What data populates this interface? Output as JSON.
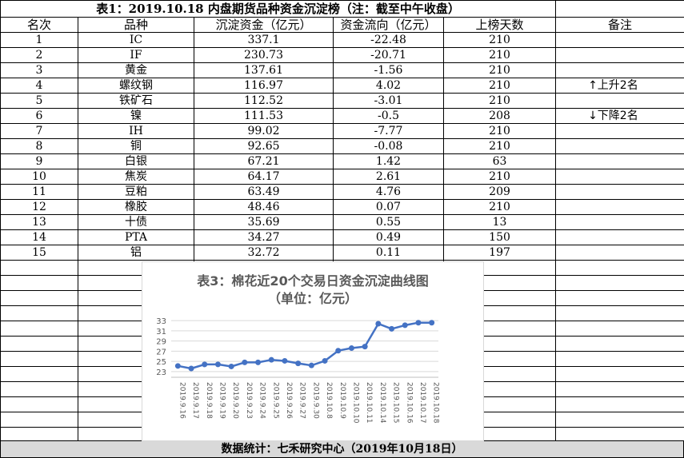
{
  "table": {
    "title": "表1：2019.10.18 内盘期货品种资金沉淀榜（注：截至中午收盘）",
    "headers": [
      "名次",
      "品种",
      "沉淀资金（亿元）",
      "资金流向（亿元）",
      "上榜天数",
      "备注"
    ],
    "rows": [
      [
        "1",
        "IC",
        "337.1",
        "-22.48",
        "210",
        ""
      ],
      [
        "2",
        "IF",
        "230.73",
        "-20.71",
        "210",
        ""
      ],
      [
        "3",
        "黄金",
        "137.61",
        "-1.56",
        "210",
        ""
      ],
      [
        "4",
        "螺纹钢",
        "116.97",
        "4.02",
        "210",
        "↑上升2名"
      ],
      [
        "5",
        "铁矿石",
        "112.52",
        "-3.01",
        "210",
        ""
      ],
      [
        "6",
        "镍",
        "111.53",
        "-0.5",
        "208",
        "↓下降2名"
      ],
      [
        "7",
        "IH",
        "99.02",
        "-7.77",
        "210",
        ""
      ],
      [
        "8",
        "铜",
        "92.65",
        "-0.08",
        "210",
        ""
      ],
      [
        "9",
        "白银",
        "67.21",
        "1.42",
        "63",
        ""
      ],
      [
        "10",
        "焦炭",
        "64.17",
        "2.61",
        "210",
        ""
      ],
      [
        "11",
        "豆粕",
        "63.49",
        "4.76",
        "209",
        ""
      ],
      [
        "12",
        "橡胶",
        "48.46",
        "0.07",
        "210",
        ""
      ],
      [
        "13",
        "十债",
        "35.69",
        "0.55",
        "13",
        ""
      ],
      [
        "14",
        "PTA",
        "34.27",
        "0.49",
        "150",
        ""
      ],
      [
        "15",
        "铝",
        "32.72",
        "0.11",
        "197",
        ""
      ]
    ]
  },
  "footer": "数据统计：七禾研究中心（2019年10月18日）",
  "chart_data": {
    "type": "line",
    "title": "表3：棉花近20个交易日资金沉淀曲线图",
    "subtitle": "（单位：亿元）",
    "x": [
      "2019.9.16",
      "2019.9.17",
      "2019.9.18",
      "2019.9.19",
      "2019.9.20",
      "2019.9.23",
      "2019.9.24",
      "2019.9.25",
      "2019.9.26",
      "2019.9.27",
      "2019.9.30",
      "2019.10.8",
      "2019.10.9",
      "2019.10.10",
      "2019.10.11",
      "2019.10.14",
      "2019.10.15",
      "2019.10.16",
      "2019.10.17",
      "2019.10.18"
    ],
    "values": [
      24.1,
      23.6,
      24.4,
      24.4,
      24.0,
      24.8,
      24.8,
      25.3,
      25.1,
      24.6,
      24.2,
      25.1,
      27.1,
      27.6,
      27.9,
      32.4,
      31.4,
      32.1,
      32.6,
      32.6
    ],
    "yticks": [
      23,
      25,
      27,
      29,
      31,
      33
    ],
    "ylim": [
      22.5,
      33.5
    ],
    "line_color": "#4472c4",
    "grid": true
  }
}
